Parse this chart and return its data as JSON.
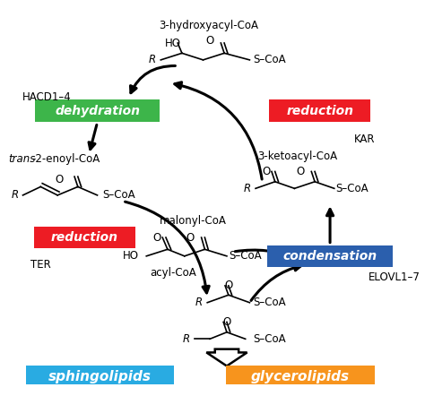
{
  "bg_color": "#ffffff",
  "fig_width": 4.74,
  "fig_height": 4.42,
  "dpi": 100,
  "colors": {
    "dehydration_bg": "#3db54a",
    "reduction_bg": "#ed1c24",
    "condensation_bg": "#2b5fad",
    "sphingolipids_bg": "#29abe2",
    "glycerolipids_bg": "#f7941d",
    "text_white": "#ffffff",
    "text_black": "#000000"
  },
  "text": {
    "top_label": "3-hydroxyacyl-CoA",
    "right_label": "3-ketoacyl-CoA",
    "left_label_italic": "trans",
    "left_label_normal": "-2-enoyl-CoA",
    "center_label": "malonyl-CoA",
    "acyl_label": "acyl-CoA",
    "hacd": "HACD1–4",
    "kar": "KAR",
    "ter": "TER",
    "elovl": "ELOVL1–7",
    "dehydration": "dehydration",
    "reduction": "reduction",
    "condensation": "condensation",
    "sphingolipids": "sphingolipids",
    "glycerolipids": "glycerolipids"
  }
}
